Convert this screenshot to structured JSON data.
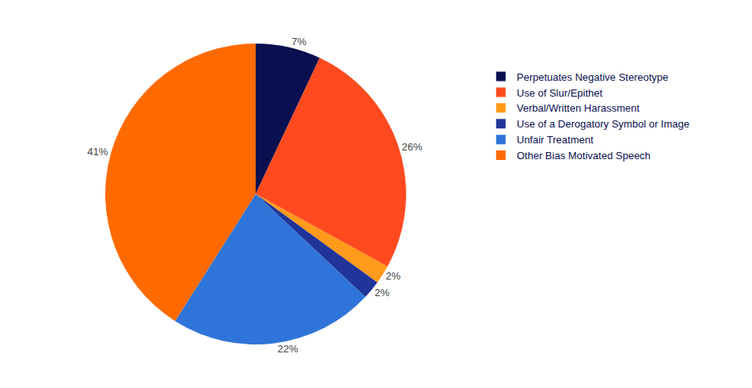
{
  "chart_data": {
    "type": "pie",
    "categories": [
      "Perpetuates Negative Stereotype",
      "Use of Slur/Epithet",
      "Verbal/Written Harassment",
      "Use of a Derogatory Symbol or Image",
      "Unfair Treatment",
      "Other Bias Motivated Speech"
    ],
    "values": [
      7,
      26,
      2,
      2,
      22,
      41
    ],
    "value_labels": [
      "7%",
      "26%",
      "2%",
      "2%",
      "22%",
      "41%"
    ],
    "colors": [
      "#0a104f",
      "#ff4a1f",
      "#ff9a1a",
      "#21349a",
      "#2f74d8",
      "#ff6a00"
    ],
    "data_labels": true,
    "legend": "right"
  }
}
